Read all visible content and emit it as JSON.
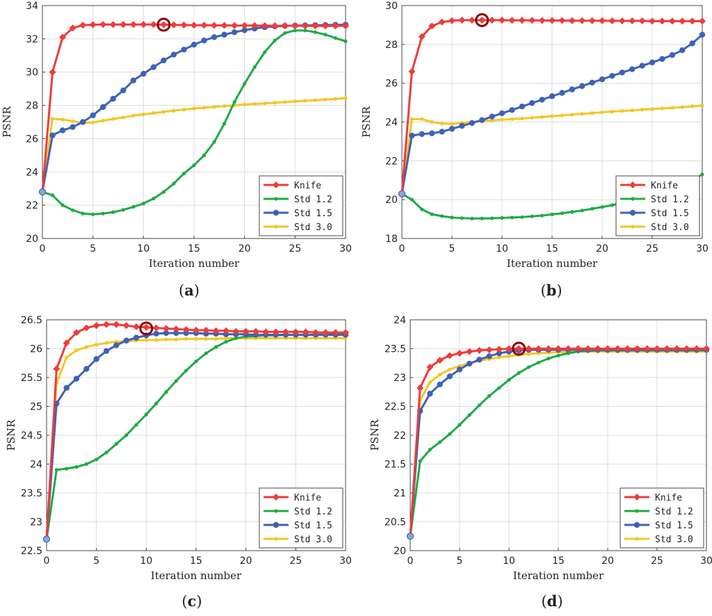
{
  "figure": {
    "series_colors": {
      "Knife": "#ef3b3b",
      "Std 1.2": "#1faa45",
      "Std 1.5": "#3e62b5",
      "Std 3.0": "#f5c623"
    },
    "marker_shapes": {
      "Knife": "diamond",
      "Std 1.2": "small-dot",
      "Std 1.5": "circle",
      "Std 3.0": "small-dot"
    },
    "highlight_color": "#8b0000"
  },
  "chart_data": [
    {
      "type": "line",
      "panel_label": "a",
      "xlabel": "Iteration number",
      "ylabel": "PSNR",
      "xlim": [
        0,
        30
      ],
      "ylim": [
        20,
        34
      ],
      "xticks": [
        0,
        5,
        10,
        15,
        20,
        25,
        30
      ],
      "yticks": [
        20,
        22,
        24,
        26,
        28,
        30,
        32,
        34
      ],
      "grid": true,
      "legend_position": "bottom-right",
      "highlight": {
        "series": "Knife",
        "x": 12,
        "y": 32.85
      },
      "series": [
        {
          "name": "Knife",
          "values": [
            22.8,
            30.0,
            32.1,
            32.65,
            32.82,
            32.85,
            32.86,
            32.86,
            32.86,
            32.86,
            32.86,
            32.86,
            32.85,
            32.84,
            32.83,
            32.82,
            32.82,
            32.81,
            32.81,
            32.8,
            32.8,
            32.8,
            32.79,
            32.79,
            32.79,
            32.79,
            32.78,
            32.78,
            32.78,
            32.78,
            32.78
          ]
        },
        {
          "name": "Std 1.2",
          "values": [
            22.8,
            22.6,
            22.0,
            21.7,
            21.5,
            21.45,
            21.5,
            21.58,
            21.72,
            21.9,
            22.1,
            22.4,
            22.8,
            23.3,
            23.9,
            24.4,
            25.0,
            25.8,
            26.9,
            28.2,
            29.3,
            30.3,
            31.2,
            31.9,
            32.35,
            32.5,
            32.5,
            32.4,
            32.25,
            32.05,
            31.85
          ]
        },
        {
          "name": "Std 1.5",
          "values": [
            22.8,
            26.2,
            26.5,
            26.7,
            27.0,
            27.4,
            27.9,
            28.4,
            28.9,
            29.5,
            29.9,
            30.3,
            30.7,
            31.05,
            31.35,
            31.65,
            31.9,
            32.1,
            32.25,
            32.4,
            32.52,
            32.62,
            32.7,
            32.75,
            32.78,
            32.8,
            32.81,
            32.82,
            32.83,
            32.84,
            32.85
          ]
        },
        {
          "name": "Std 3.0",
          "values": [
            22.8,
            27.2,
            27.15,
            27.05,
            26.95,
            26.98,
            27.08,
            27.18,
            27.28,
            27.38,
            27.46,
            27.54,
            27.61,
            27.68,
            27.75,
            27.81,
            27.86,
            27.91,
            27.96,
            28.0,
            28.05,
            28.09,
            28.12,
            28.16,
            28.2,
            28.24,
            28.28,
            28.31,
            28.35,
            28.39,
            28.43
          ]
        }
      ]
    },
    {
      "type": "line",
      "panel_label": "b",
      "xlabel": "Iteration number",
      "ylabel": "PSNR",
      "xlim": [
        0,
        30
      ],
      "ylim": [
        18,
        30
      ],
      "xticks": [
        0,
        5,
        10,
        15,
        20,
        25,
        30
      ],
      "yticks": [
        18,
        20,
        22,
        24,
        26,
        28,
        30
      ],
      "grid": true,
      "legend_position": "bottom-right",
      "highlight": {
        "series": "Knife",
        "x": 8,
        "y": 29.25
      },
      "series": [
        {
          "name": "Knife",
          "values": [
            20.3,
            26.6,
            28.4,
            28.95,
            29.15,
            29.22,
            29.25,
            29.25,
            29.25,
            29.25,
            29.25,
            29.24,
            29.24,
            29.24,
            29.23,
            29.23,
            29.23,
            29.22,
            29.22,
            29.22,
            29.22,
            29.21,
            29.21,
            29.21,
            29.21,
            29.2,
            29.2,
            29.2,
            29.2,
            29.2,
            29.2
          ]
        },
        {
          "name": "Std 1.2",
          "values": [
            20.3,
            20.0,
            19.5,
            19.25,
            19.15,
            19.08,
            19.05,
            19.03,
            19.03,
            19.04,
            19.06,
            19.08,
            19.1,
            19.14,
            19.18,
            19.24,
            19.3,
            19.37,
            19.44,
            19.53,
            19.62,
            19.72,
            19.83,
            19.95,
            20.08,
            20.22,
            20.38,
            20.55,
            20.75,
            20.98,
            21.3
          ]
        },
        {
          "name": "Std 1.5",
          "values": [
            20.3,
            23.3,
            23.38,
            23.42,
            23.5,
            23.65,
            23.8,
            23.95,
            24.1,
            24.28,
            24.45,
            24.62,
            24.8,
            24.98,
            25.15,
            25.33,
            25.5,
            25.68,
            25.85,
            26.03,
            26.2,
            26.38,
            26.55,
            26.72,
            26.9,
            27.07,
            27.25,
            27.45,
            27.7,
            28.05,
            28.5
          ]
        },
        {
          "name": "Std 3.0",
          "values": [
            20.3,
            24.15,
            24.15,
            24.0,
            23.92,
            23.9,
            23.95,
            24.0,
            24.05,
            24.08,
            24.12,
            24.15,
            24.18,
            24.22,
            24.26,
            24.3,
            24.34,
            24.38,
            24.42,
            24.46,
            24.5,
            24.54,
            24.57,
            24.6,
            24.64,
            24.67,
            24.7,
            24.73,
            24.77,
            24.81,
            24.85
          ]
        }
      ]
    },
    {
      "type": "line",
      "panel_label": "c",
      "xlabel": "Iteration number",
      "ylabel": "PSNR",
      "xlim": [
        0,
        30
      ],
      "ylim": [
        22.5,
        26.5
      ],
      "xticks": [
        0,
        5,
        10,
        15,
        20,
        25,
        30
      ],
      "yticks": [
        22.5,
        23,
        23.5,
        24,
        24.5,
        25,
        25.5,
        26,
        26.5
      ],
      "grid": true,
      "legend_position": "bottom-right",
      "highlight": {
        "series": "Knife",
        "x": 10,
        "y": 26.35
      },
      "series": [
        {
          "name": "Knife",
          "values": [
            22.7,
            25.65,
            26.1,
            26.28,
            26.36,
            26.4,
            26.42,
            26.42,
            26.4,
            26.38,
            26.37,
            26.36,
            26.35,
            26.34,
            26.33,
            26.32,
            26.32,
            26.31,
            26.31,
            26.3,
            26.3,
            26.3,
            26.29,
            26.29,
            26.29,
            26.29,
            26.29,
            26.28,
            26.28,
            26.28,
            26.28
          ]
        },
        {
          "name": "Std 1.2",
          "values": [
            22.7,
            23.9,
            23.92,
            23.95,
            24.0,
            24.08,
            24.2,
            24.35,
            24.5,
            24.68,
            24.86,
            25.05,
            25.25,
            25.44,
            25.62,
            25.78,
            25.92,
            26.03,
            26.12,
            26.18,
            26.21,
            26.22,
            26.23,
            26.23,
            26.24,
            26.24,
            26.24,
            26.24,
            26.25,
            26.25,
            26.25
          ]
        },
        {
          "name": "Std 1.5",
          "values": [
            22.7,
            25.05,
            25.32,
            25.48,
            25.65,
            25.82,
            25.96,
            26.06,
            26.14,
            26.19,
            26.23,
            26.26,
            26.27,
            26.27,
            26.27,
            26.27,
            26.26,
            26.26,
            26.25,
            26.25,
            26.25,
            26.24,
            26.24,
            26.24,
            26.24,
            26.24,
            26.24,
            26.24,
            26.24,
            26.24,
            26.24
          ]
        },
        {
          "name": "Std 3.0",
          "values": [
            22.7,
            25.4,
            25.85,
            25.97,
            26.03,
            26.07,
            26.1,
            26.12,
            26.13,
            26.14,
            26.15,
            26.15,
            26.16,
            26.16,
            26.17,
            26.17,
            26.17,
            26.17,
            26.18,
            26.18,
            26.18,
            26.18,
            26.18,
            26.18,
            26.18,
            26.18,
            26.18,
            26.18,
            26.18,
            26.18,
            26.18
          ]
        }
      ]
    },
    {
      "type": "line",
      "panel_label": "d",
      "xlabel": "Iteration number",
      "ylabel": "PSNR",
      "xlim": [
        0,
        30
      ],
      "ylim": [
        20,
        24
      ],
      "xticks": [
        0,
        5,
        10,
        15,
        20,
        25,
        30
      ],
      "yticks": [
        20,
        20.5,
        21,
        21.5,
        22,
        22.5,
        23,
        23.5,
        24
      ],
      "grid": true,
      "legend_position": "bottom-right",
      "highlight": {
        "series": "Knife",
        "x": 11,
        "y": 23.5
      },
      "series": [
        {
          "name": "Knife",
          "values": [
            20.25,
            22.82,
            23.18,
            23.3,
            23.38,
            23.42,
            23.45,
            23.47,
            23.48,
            23.49,
            23.5,
            23.5,
            23.5,
            23.5,
            23.5,
            23.5,
            23.5,
            23.5,
            23.5,
            23.5,
            23.5,
            23.5,
            23.5,
            23.5,
            23.5,
            23.5,
            23.5,
            23.5,
            23.5,
            23.5,
            23.5
          ]
        },
        {
          "name": "Std 1.2",
          "values": [
            20.25,
            21.55,
            21.75,
            21.88,
            22.02,
            22.18,
            22.35,
            22.52,
            22.68,
            22.82,
            22.96,
            23.08,
            23.18,
            23.26,
            23.33,
            23.38,
            23.42,
            23.45,
            23.46,
            23.47,
            23.47,
            23.47,
            23.47,
            23.47,
            23.47,
            23.47,
            23.47,
            23.47,
            23.47,
            23.47,
            23.47
          ]
        },
        {
          "name": "Std 1.5",
          "values": [
            20.25,
            22.42,
            22.72,
            22.88,
            23.02,
            23.14,
            23.24,
            23.31,
            23.37,
            23.42,
            23.45,
            23.47,
            23.48,
            23.48,
            23.48,
            23.48,
            23.48,
            23.48,
            23.48,
            23.48,
            23.48,
            23.48,
            23.48,
            23.48,
            23.48,
            23.48,
            23.48,
            23.48,
            23.48,
            23.48,
            23.48
          ]
        },
        {
          "name": "Std 3.0",
          "values": [
            20.25,
            22.6,
            22.92,
            23.05,
            23.14,
            23.2,
            23.25,
            23.29,
            23.32,
            23.35,
            23.37,
            23.39,
            23.41,
            23.42,
            23.43,
            23.44,
            23.44,
            23.45,
            23.45,
            23.45,
            23.45,
            23.45,
            23.45,
            23.45,
            23.45,
            23.45,
            23.45,
            23.45,
            23.45,
            23.45,
            23.45
          ]
        }
      ]
    }
  ]
}
